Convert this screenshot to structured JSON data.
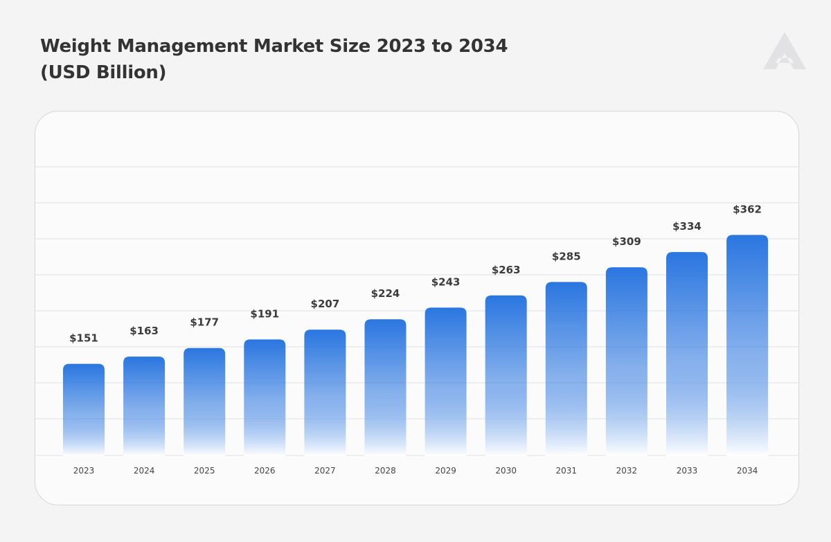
{
  "header": {
    "title_line1": "Weight Management Market Size 2023 to 2034",
    "title_line2": "(USD Billion)"
  },
  "logo": {
    "icon": "brand-triangle-logo-icon",
    "color": "#e2e2e4"
  },
  "colors": {
    "bar_top": "#2a76e0",
    "bar_bottom": "#ffffff",
    "grid": "#e6e6ea"
  },
  "chart_data": {
    "type": "bar",
    "title": "Weight Management Market Size 2023 to 2034 (USD Billion)",
    "xlabel": "",
    "ylabel": "",
    "categories": [
      "2023",
      "2024",
      "2025",
      "2026",
      "2027",
      "2028",
      "2029",
      "2030",
      "2031",
      "2032",
      "2033",
      "2034"
    ],
    "values": [
      151,
      163,
      177,
      191,
      207,
      224,
      243,
      263,
      285,
      309,
      334,
      362
    ],
    "data_labels": [
      "$151",
      "$163",
      "$177",
      "$191",
      "$207",
      "$224",
      "$243",
      "$263",
      "$285",
      "$309",
      "$334",
      "$362"
    ],
    "ylim": [
      0,
      400
    ],
    "grid": true,
    "legend": "none"
  }
}
